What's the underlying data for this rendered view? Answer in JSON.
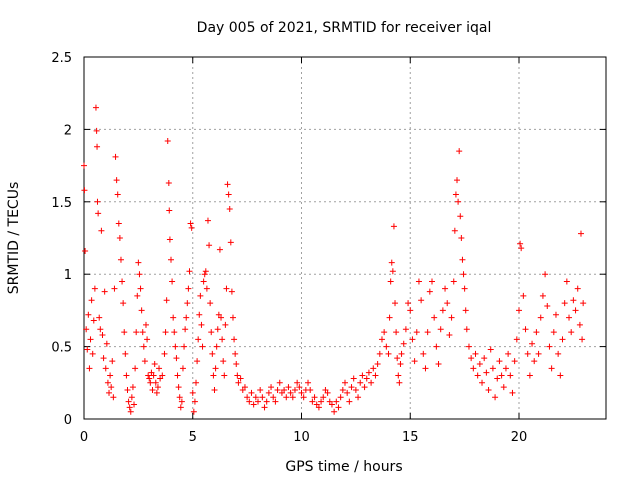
{
  "chart_data": {
    "type": "scatter",
    "title": "Day 005 of 2021, SRMTID for receiver iqal",
    "xlabel": "GPS time / hours",
    "ylabel": "SRMTID / TECUs",
    "xlim": [
      0,
      24
    ],
    "ylim": [
      0,
      2.5
    ],
    "xticks": [
      0,
      5,
      10,
      15,
      20
    ],
    "xtick_labels": [
      "0",
      "5",
      "10",
      "15",
      "20"
    ],
    "yticks": [
      0,
      0.5,
      1,
      1.5,
      2,
      2.5
    ],
    "ytick_labels": [
      "0",
      "0.5",
      "1",
      "1.5",
      "2",
      "2.5"
    ],
    "grid": true,
    "marker": "plus",
    "series": [
      {
        "name": "SRMTID",
        "color": "#ff0000",
        "points": [
          [
            0.0,
            1.75
          ],
          [
            0.02,
            1.58
          ],
          [
            0.05,
            1.16
          ],
          [
            0.1,
            0.62
          ],
          [
            0.15,
            0.48
          ],
          [
            0.2,
            0.72
          ],
          [
            0.25,
            0.35
          ],
          [
            0.3,
            0.55
          ],
          [
            0.35,
            0.82
          ],
          [
            0.4,
            0.45
          ],
          [
            0.45,
            0.68
          ],
          [
            0.5,
            0.9
          ],
          [
            0.55,
            2.15
          ],
          [
            0.58,
            1.99
          ],
          [
            0.6,
            1.88
          ],
          [
            0.62,
            1.5
          ],
          [
            0.65,
            1.42
          ],
          [
            0.7,
            0.7
          ],
          [
            0.75,
            0.62
          ],
          [
            0.8,
            1.3
          ],
          [
            0.85,
            0.58
          ],
          [
            0.9,
            0.42
          ],
          [
            0.95,
            0.88
          ],
          [
            1.0,
            0.35
          ],
          [
            1.05,
            0.52
          ],
          [
            1.1,
            0.25
          ],
          [
            1.15,
            0.18
          ],
          [
            1.2,
            0.3
          ],
          [
            1.25,
            0.22
          ],
          [
            1.3,
            0.4
          ],
          [
            1.35,
            0.15
          ],
          [
            1.4,
            0.9
          ],
          [
            1.45,
            1.81
          ],
          [
            1.5,
            1.65
          ],
          [
            1.55,
            1.55
          ],
          [
            1.6,
            1.35
          ],
          [
            1.65,
            1.25
          ],
          [
            1.7,
            1.1
          ],
          [
            1.75,
            0.95
          ],
          [
            1.8,
            0.8
          ],
          [
            1.85,
            0.6
          ],
          [
            1.9,
            0.45
          ],
          [
            1.95,
            0.3
          ],
          [
            2.0,
            0.2
          ],
          [
            2.05,
            0.12
          ],
          [
            2.1,
            0.08
          ],
          [
            2.15,
            0.05
          ],
          [
            2.2,
            0.15
          ],
          [
            2.25,
            0.22
          ],
          [
            2.3,
            0.1
          ],
          [
            2.35,
            0.35
          ],
          [
            2.4,
            0.6
          ],
          [
            2.45,
            0.85
          ],
          [
            2.5,
            1.08
          ],
          [
            2.55,
            1.0
          ],
          [
            2.6,
            0.9
          ],
          [
            2.65,
            0.75
          ],
          [
            2.7,
            0.6
          ],
          [
            2.75,
            0.5
          ],
          [
            2.8,
            0.4
          ],
          [
            2.85,
            0.65
          ],
          [
            2.9,
            0.55
          ],
          [
            2.95,
            0.3
          ],
          [
            3.0,
            0.28
          ],
          [
            3.05,
            0.25
          ],
          [
            3.1,
            0.32
          ],
          [
            3.15,
            0.2
          ],
          [
            3.2,
            0.3
          ],
          [
            3.25,
            0.38
          ],
          [
            3.3,
            0.25
          ],
          [
            3.35,
            0.18
          ],
          [
            3.4,
            0.22
          ],
          [
            3.45,
            0.35
          ],
          [
            3.5,
            0.28
          ],
          [
            3.6,
            0.3
          ],
          [
            3.7,
            0.45
          ],
          [
            3.75,
            0.6
          ],
          [
            3.8,
            0.82
          ],
          [
            3.85,
            1.92
          ],
          [
            3.9,
            1.63
          ],
          [
            3.92,
            1.44
          ],
          [
            3.95,
            1.24
          ],
          [
            4.0,
            1.1
          ],
          [
            4.05,
            0.95
          ],
          [
            4.1,
            0.7
          ],
          [
            4.15,
            0.6
          ],
          [
            4.2,
            0.5
          ],
          [
            4.25,
            0.42
          ],
          [
            4.3,
            0.3
          ],
          [
            4.35,
            0.22
          ],
          [
            4.4,
            0.15
          ],
          [
            4.45,
            0.08
          ],
          [
            4.5,
            0.12
          ],
          [
            4.55,
            0.35
          ],
          [
            4.6,
            0.5
          ],
          [
            4.65,
            0.62
          ],
          [
            4.7,
            0.7
          ],
          [
            4.75,
            0.8
          ],
          [
            4.8,
            0.9
          ],
          [
            4.85,
            1.02
          ],
          [
            4.9,
            1.35
          ],
          [
            4.95,
            1.32
          ],
          [
            5.0,
            0.18
          ],
          [
            5.05,
            0.05
          ],
          [
            5.1,
            0.12
          ],
          [
            5.15,
            0.25
          ],
          [
            5.2,
            0.4
          ],
          [
            5.25,
            0.55
          ],
          [
            5.3,
            0.72
          ],
          [
            5.35,
            0.85
          ],
          [
            5.4,
            0.65
          ],
          [
            5.45,
            0.5
          ],
          [
            5.5,
            0.95
          ],
          [
            5.55,
            1.0
          ],
          [
            5.6,
            1.02
          ],
          [
            5.65,
            0.9
          ],
          [
            5.7,
            1.37
          ],
          [
            5.75,
            1.2
          ],
          [
            5.8,
            0.8
          ],
          [
            5.85,
            0.6
          ],
          [
            5.9,
            0.45
          ],
          [
            5.95,
            0.3
          ],
          [
            6.0,
            0.2
          ],
          [
            6.05,
            0.35
          ],
          [
            6.1,
            0.5
          ],
          [
            6.15,
            0.62
          ],
          [
            6.2,
            0.72
          ],
          [
            6.25,
            1.17
          ],
          [
            6.3,
            0.7
          ],
          [
            6.35,
            0.55
          ],
          [
            6.4,
            0.4
          ],
          [
            6.45,
            0.3
          ],
          [
            6.5,
            0.65
          ],
          [
            6.55,
            0.9
          ],
          [
            6.6,
            1.62
          ],
          [
            6.65,
            1.55
          ],
          [
            6.7,
            1.45
          ],
          [
            6.75,
            1.22
          ],
          [
            6.8,
            0.88
          ],
          [
            6.85,
            0.7
          ],
          [
            6.9,
            0.55
          ],
          [
            6.95,
            0.45
          ],
          [
            7.0,
            0.38
          ],
          [
            7.05,
            0.3
          ],
          [
            7.1,
            0.25
          ],
          [
            7.2,
            0.28
          ],
          [
            7.3,
            0.2
          ],
          [
            7.4,
            0.22
          ],
          [
            7.5,
            0.15
          ],
          [
            7.6,
            0.12
          ],
          [
            7.7,
            0.18
          ],
          [
            7.8,
            0.1
          ],
          [
            7.9,
            0.15
          ],
          [
            8.0,
            0.12
          ],
          [
            8.1,
            0.2
          ],
          [
            8.2,
            0.15
          ],
          [
            8.3,
            0.08
          ],
          [
            8.4,
            0.12
          ],
          [
            8.5,
            0.18
          ],
          [
            8.6,
            0.22
          ],
          [
            8.7,
            0.15
          ],
          [
            8.8,
            0.12
          ],
          [
            8.9,
            0.2
          ],
          [
            9.0,
            0.25
          ],
          [
            9.1,
            0.18
          ],
          [
            9.2,
            0.2
          ],
          [
            9.3,
            0.15
          ],
          [
            9.4,
            0.22
          ],
          [
            9.5,
            0.18
          ],
          [
            9.6,
            0.15
          ],
          [
            9.7,
            0.2
          ],
          [
            9.8,
            0.25
          ],
          [
            9.9,
            0.22
          ],
          [
            10.0,
            0.18
          ],
          [
            10.1,
            0.15
          ],
          [
            10.2,
            0.2
          ],
          [
            10.3,
            0.25
          ],
          [
            10.4,
            0.2
          ],
          [
            10.5,
            0.12
          ],
          [
            10.6,
            0.15
          ],
          [
            10.7,
            0.1
          ],
          [
            10.8,
            0.08
          ],
          [
            10.9,
            0.12
          ],
          [
            11.0,
            0.15
          ],
          [
            11.1,
            0.2
          ],
          [
            11.2,
            0.18
          ],
          [
            11.3,
            0.12
          ],
          [
            11.4,
            0.1
          ],
          [
            11.5,
            0.05
          ],
          [
            11.6,
            0.12
          ],
          [
            11.7,
            0.08
          ],
          [
            11.8,
            0.15
          ],
          [
            11.9,
            0.2
          ],
          [
            12.0,
            0.25
          ],
          [
            12.1,
            0.18
          ],
          [
            12.2,
            0.12
          ],
          [
            12.3,
            0.22
          ],
          [
            12.4,
            0.28
          ],
          [
            12.5,
            0.2
          ],
          [
            12.6,
            0.15
          ],
          [
            12.7,
            0.25
          ],
          [
            12.8,
            0.3
          ],
          [
            12.9,
            0.22
          ],
          [
            13.0,
            0.28
          ],
          [
            13.1,
            0.32
          ],
          [
            13.2,
            0.25
          ],
          [
            13.3,
            0.35
          ],
          [
            13.4,
            0.3
          ],
          [
            13.5,
            0.38
          ],
          [
            13.6,
            0.45
          ],
          [
            13.7,
            0.55
          ],
          [
            13.8,
            0.6
          ],
          [
            13.9,
            0.5
          ],
          [
            14.0,
            0.45
          ],
          [
            14.05,
            0.7
          ],
          [
            14.1,
            0.95
          ],
          [
            14.15,
            1.08
          ],
          [
            14.2,
            1.02
          ],
          [
            14.25,
            1.33
          ],
          [
            14.3,
            0.8
          ],
          [
            14.35,
            0.6
          ],
          [
            14.4,
            0.42
          ],
          [
            14.45,
            0.3
          ],
          [
            14.5,
            0.25
          ],
          [
            14.55,
            0.38
          ],
          [
            14.6,
            0.45
          ],
          [
            14.7,
            0.52
          ],
          [
            14.8,
            0.62
          ],
          [
            14.9,
            0.8
          ],
          [
            15.0,
            0.75
          ],
          [
            15.1,
            0.55
          ],
          [
            15.2,
            0.4
          ],
          [
            15.3,
            0.6
          ],
          [
            15.4,
            0.95
          ],
          [
            15.5,
            0.82
          ],
          [
            15.6,
            0.45
          ],
          [
            15.7,
            0.35
          ],
          [
            15.8,
            0.6
          ],
          [
            15.9,
            0.88
          ],
          [
            16.0,
            0.95
          ],
          [
            16.1,
            0.7
          ],
          [
            16.2,
            0.5
          ],
          [
            16.3,
            0.38
          ],
          [
            16.4,
            0.62
          ],
          [
            16.5,
            0.75
          ],
          [
            16.6,
            0.9
          ],
          [
            16.7,
            0.8
          ],
          [
            16.8,
            0.58
          ],
          [
            16.9,
            0.7
          ],
          [
            17.0,
            0.95
          ],
          [
            17.05,
            1.3
          ],
          [
            17.1,
            1.55
          ],
          [
            17.15,
            1.65
          ],
          [
            17.2,
            1.5
          ],
          [
            17.25,
            1.85
          ],
          [
            17.3,
            1.4
          ],
          [
            17.35,
            1.25
          ],
          [
            17.4,
            1.1
          ],
          [
            17.45,
            1.0
          ],
          [
            17.5,
            0.9
          ],
          [
            17.55,
            0.75
          ],
          [
            17.6,
            0.62
          ],
          [
            17.7,
            0.5
          ],
          [
            17.8,
            0.42
          ],
          [
            17.9,
            0.35
          ],
          [
            18.0,
            0.45
          ],
          [
            18.1,
            0.3
          ],
          [
            18.2,
            0.38
          ],
          [
            18.3,
            0.25
          ],
          [
            18.4,
            0.42
          ],
          [
            18.5,
            0.32
          ],
          [
            18.6,
            0.2
          ],
          [
            18.7,
            0.48
          ],
          [
            18.8,
            0.35
          ],
          [
            18.9,
            0.15
          ],
          [
            19.0,
            0.28
          ],
          [
            19.1,
            0.4
          ],
          [
            19.2,
            0.3
          ],
          [
            19.3,
            0.22
          ],
          [
            19.4,
            0.35
          ],
          [
            19.5,
            0.45
          ],
          [
            19.6,
            0.3
          ],
          [
            19.7,
            0.18
          ],
          [
            19.8,
            0.4
          ],
          [
            19.9,
            0.55
          ],
          [
            20.0,
            0.75
          ],
          [
            20.05,
            1.21
          ],
          [
            20.1,
            1.18
          ],
          [
            20.2,
            0.85
          ],
          [
            20.3,
            0.62
          ],
          [
            20.4,
            0.45
          ],
          [
            20.5,
            0.3
          ],
          [
            20.6,
            0.52
          ],
          [
            20.7,
            0.4
          ],
          [
            20.8,
            0.6
          ],
          [
            20.9,
            0.45
          ],
          [
            21.0,
            0.7
          ],
          [
            21.1,
            0.85
          ],
          [
            21.2,
            1.0
          ],
          [
            21.3,
            0.78
          ],
          [
            21.4,
            0.5
          ],
          [
            21.5,
            0.35
          ],
          [
            21.6,
            0.6
          ],
          [
            21.7,
            0.72
          ],
          [
            21.8,
            0.45
          ],
          [
            21.9,
            0.3
          ],
          [
            22.0,
            0.55
          ],
          [
            22.1,
            0.8
          ],
          [
            22.2,
            0.95
          ],
          [
            22.3,
            0.7
          ],
          [
            22.4,
            0.6
          ],
          [
            22.5,
            0.82
          ],
          [
            22.6,
            0.75
          ],
          [
            22.7,
            0.9
          ],
          [
            22.8,
            0.65
          ],
          [
            22.85,
            1.28
          ],
          [
            22.9,
            0.55
          ],
          [
            22.95,
            0.8
          ]
        ]
      }
    ]
  }
}
